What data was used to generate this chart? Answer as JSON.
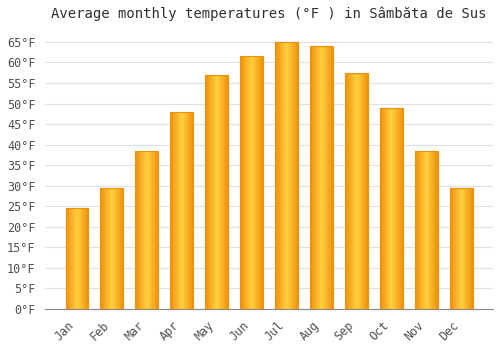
{
  "title": "Average monthly temperatures (°F ) in Sâmbăta de Sus",
  "months": [
    "Jan",
    "Feb",
    "Mar",
    "Apr",
    "May",
    "Jun",
    "Jul",
    "Aug",
    "Sep",
    "Oct",
    "Nov",
    "Dec"
  ],
  "values": [
    24.5,
    29.5,
    38.5,
    48.0,
    57.0,
    61.5,
    65.0,
    64.0,
    57.5,
    49.0,
    38.5,
    29.5
  ],
  "bar_color_center": "#FFD040",
  "bar_color_edge": "#F0900A",
  "background_color": "#FFFFFF",
  "grid_color": "#E0E0E8",
  "title_color": "#303030",
  "tick_color": "#505050",
  "axis_color": "#888888",
  "ylim": [
    0,
    68
  ],
  "ytick_step": 5,
  "title_fontsize": 10,
  "tick_fontsize": 8.5
}
